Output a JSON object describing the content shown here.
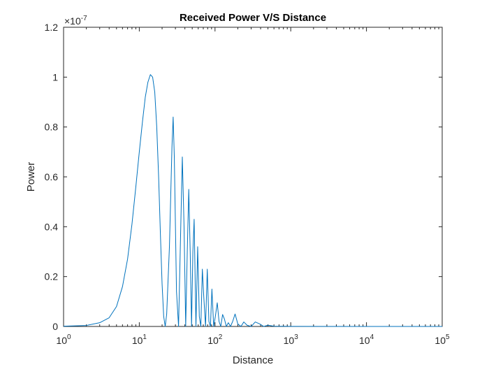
{
  "chart_data": {
    "type": "line",
    "title": "Received Power V/S Distance",
    "xlabel": "Distance",
    "ylabel": "Power",
    "x_scale": "log",
    "xlim": [
      1,
      100000
    ],
    "ylim": [
      0,
      1.2e-07
    ],
    "y_exponent_label": "×10",
    "y_exponent_power": "-7",
    "x_ticks": [
      {
        "base": "10",
        "exp": "0"
      },
      {
        "base": "10",
        "exp": "1"
      },
      {
        "base": "10",
        "exp": "2"
      },
      {
        "base": "10",
        "exp": "3"
      },
      {
        "base": "10",
        "exp": "4"
      },
      {
        "base": "10",
        "exp": "5"
      }
    ],
    "y_ticks": [
      "0",
      "0.2",
      "0.4",
      "0.6",
      "0.8",
      "1",
      "1.2"
    ],
    "y_tick_values": [
      0,
      2e-08,
      4e-08,
      6e-08,
      8e-08,
      1e-07,
      1.2e-07
    ],
    "grid": false,
    "line_color": "#0072BD",
    "series": [
      {
        "name": "",
        "x": [
          1,
          2,
          3,
          4,
          5,
          6,
          7,
          8,
          9,
          10,
          11,
          12,
          13,
          14,
          15,
          16,
          17,
          18,
          19,
          20,
          21,
          22,
          23,
          25,
          27,
          28,
          29,
          31,
          33,
          35,
          37,
          39,
          41,
          43,
          45,
          47,
          49,
          51,
          53,
          56,
          59,
          62,
          65,
          68,
          71,
          75,
          79,
          83,
          87,
          91,
          96,
          101,
          107,
          113,
          119,
          126,
          133,
          141,
          150,
          160,
          171,
          184,
          200,
          220,
          240,
          265,
          300,
          340,
          390,
          440,
          500,
          600,
          1000,
          10000,
          100000
        ],
        "y": [
          1e-10,
          4e-10,
          1.5e-09,
          3.5e-09,
          8e-09,
          1.6e-08,
          2.7e-08,
          4.1e-08,
          5.6e-08,
          7e-08,
          8.2e-08,
          9.2e-08,
          9.8e-08,
          1.01e-07,
          1e-07,
          9.4e-08,
          8e-08,
          6e-08,
          3.7e-08,
          1.7e-08,
          4e-09,
          0,
          5e-09,
          3.2e-08,
          7.2e-08,
          8.4e-08,
          6.8e-08,
          1.4e-08,
          0,
          3.5e-08,
          6.8e-08,
          4e-08,
          0,
          3e-08,
          5.5e-08,
          3e-08,
          0,
          3e-08,
          4.3e-08,
          0,
          3.2e-08,
          4e-09,
          0,
          2.3e-08,
          1.2e-08,
          0,
          2.3e-08,
          2e-09,
          0,
          1.5e-08,
          0,
          4e-09,
          9.5e-09,
          2e-09,
          0,
          4.8e-09,
          3e-09,
          0,
          1.5e-09,
          0,
          2e-09,
          5e-09,
          1e-09,
          0,
          1.8e-09,
          5e-10,
          0,
          1.8e-09,
          1e-09,
          0,
          5e-10,
          1e-10,
          2e-11,
          0,
          0
        ]
      }
    ]
  }
}
